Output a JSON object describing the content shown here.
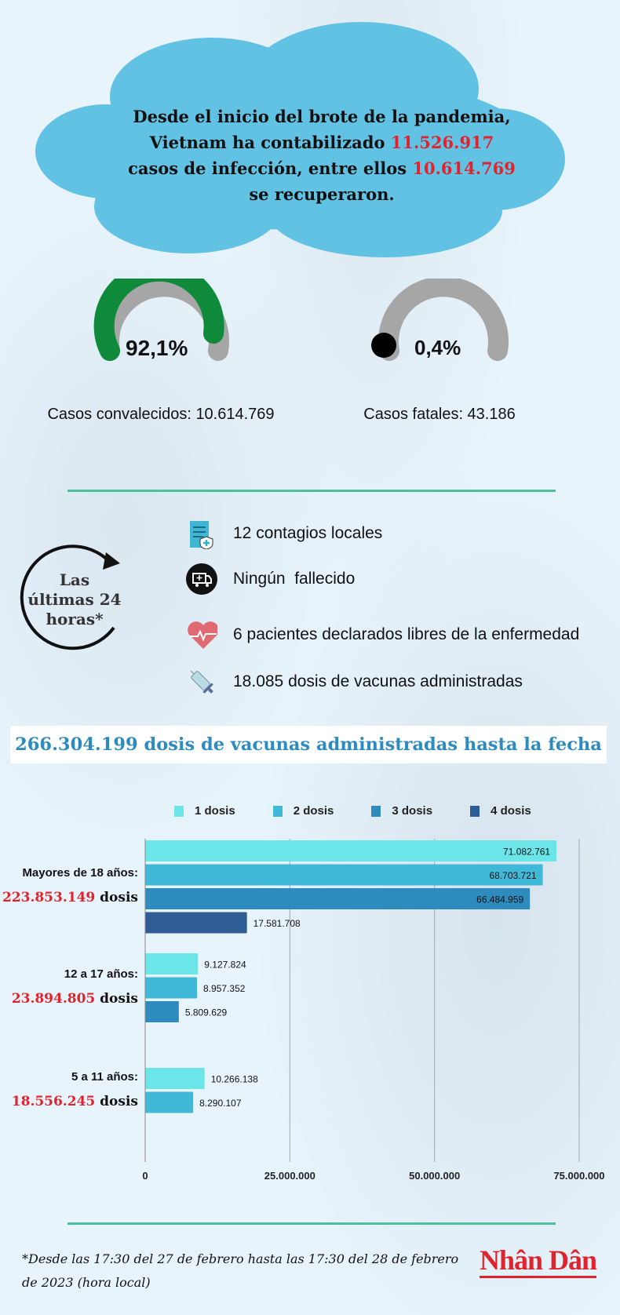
{
  "headline": {
    "line1": "Desde el inicio del brote de la pandemia,",
    "line2_pre": "Vietnam ha contabilizado ",
    "line2_num": "11.526.917",
    "line3_pre": "casos de infección, entre ellos ",
    "line3_num": "10.614.769",
    "line4": "se recuperaron."
  },
  "gauges": [
    {
      "percent": "92,1%",
      "value": 92.1,
      "label": "Casos convalecidos: 10.614.769",
      "color": "#0f8a3a"
    },
    {
      "percent": "0,4%",
      "value": 0.4,
      "label": "Casos fatales: 43.186",
      "color": "#000000"
    }
  ],
  "last24": {
    "title1": "Las",
    "title2": "últimas 24",
    "title3": "horas*",
    "items": [
      {
        "icon": "clipboard-shield-icon",
        "text": "12 contagios locales"
      },
      {
        "icon": "ambulance-icon",
        "text": "Ningún  fallecido"
      },
      {
        "icon": "heartbeat-icon",
        "text": "6 pacientes declarados libres de la enfermedad"
      },
      {
        "icon": "syringe-icon",
        "text": "18.085 dosis de vacunas administradas"
      }
    ]
  },
  "banner": "266.304.199 dosis de vacunas administradas hasta la fecha",
  "chart_data": {
    "type": "bar",
    "orientation": "horizontal",
    "xlim": [
      0,
      75000000
    ],
    "xticks": [
      "0",
      "25.000.000",
      "50.000.000",
      "75.000.000"
    ],
    "grid": true,
    "legend_placement": "top",
    "categories": [
      {
        "label": "Mayores de 18 años:",
        "total": "223.853.149",
        "unit": " dosis"
      },
      {
        "label": "12 a 17 años:",
        "total": "23.894.805",
        "unit": " dosis"
      },
      {
        "label": "5 a 11 años:",
        "total": "18.556.245",
        "unit": " dosis"
      }
    ],
    "series": [
      {
        "name": "1 dosis",
        "color": "#6ce5e8",
        "values": [
          71082761,
          9127824,
          10266138
        ],
        "labels": [
          "71.082.761",
          "9.127.824",
          "10.266.138"
        ]
      },
      {
        "name": "2 dosis",
        "color": "#40b8d8",
        "values": [
          68703721,
          8957352,
          8290107
        ],
        "labels": [
          "68.703.721",
          "8.957.352",
          "8.290.107"
        ]
      },
      {
        "name": "3 dosis",
        "color": "#2d8bbd",
        "values": [
          66484959,
          5809629,
          null
        ],
        "labels": [
          "66.484.959",
          "5.809.629",
          null
        ]
      },
      {
        "name": "4 dosis",
        "color": "#2e5d96",
        "values": [
          17581708,
          null,
          null
        ],
        "labels": [
          "17.581.708",
          null,
          null
        ]
      }
    ]
  },
  "footnote": "*Desde las 17:30 del 27 de febrero hasta las 17:30 del 28 de febrero de 2023 (hora local)",
  "logo": "Nhân Dân"
}
